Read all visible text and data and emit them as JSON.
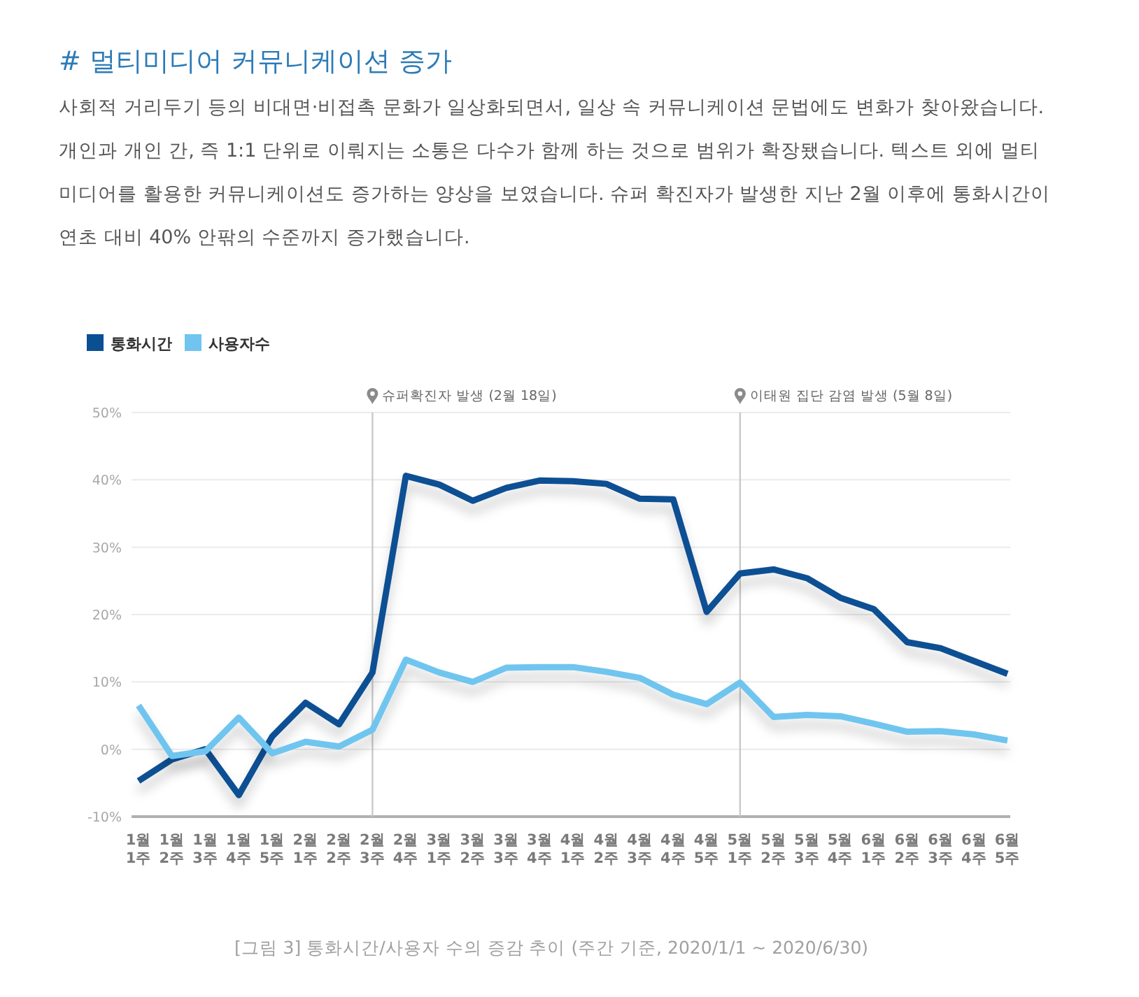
{
  "chart_data": {
    "type": "line",
    "title": "# 멀티미디어 커뮤니케이션 증가",
    "subtitle": "사회적 거리두기 등의 비대면·비접촉 문화가 일상화되면서, 일상 속 커뮤니케이션 문법에도 변화가 찾아왔습니다. 개인과 개인 간, 즉 1:1 단위로 이뤄지는 소통은 다수가 함께 하는 것으로 범위가 확장됐습니다. 텍스트 외에 멀티미디어를 활용한 커뮤니케이션도 증가하는 양상을 보였습니다. 슈퍼 확진자가 발생한 지난 2월 이후에 통화시간이 연초 대비 40% 안팎의 수준까지 증가했습니다.",
    "categories": [
      "1월 1주",
      "1월 2주",
      "1월 3주",
      "1월 4주",
      "1월 5주",
      "2월 1주",
      "2월 2주",
      "2월 3주",
      "2월 4주",
      "3월 1주",
      "3월 2주",
      "3월 3주",
      "3월 4주",
      "4월 1주",
      "4월 2주",
      "4월 3주",
      "4월 4주",
      "4월 5주",
      "5월 1주",
      "5월 2주",
      "5월 3주",
      "5월 4주",
      "6월 1주",
      "6월 2주",
      "6월 3주",
      "6월 4주",
      "6월 5주"
    ],
    "series": [
      {
        "name": "통화시간",
        "color": "#0b4f93",
        "values": [
          -4.7,
          -1.5,
          0,
          -6.8,
          1.9,
          6.9,
          3.7,
          11.4,
          40.6,
          39.3,
          36.9,
          38.8,
          39.9,
          39.8,
          39.4,
          37.2,
          37.1,
          20.4,
          26.1,
          26.7,
          25.4,
          22.5,
          20.8,
          15.9,
          15.0,
          13.1,
          11.2
        ]
      },
      {
        "name": "사용자수",
        "color": "#6fc5ef",
        "values": [
          6.5,
          -1.0,
          -0.3,
          4.7,
          -0.6,
          1.1,
          0.4,
          2.9,
          13.3,
          11.4,
          10.0,
          12.1,
          12.2,
          12.2,
          11.5,
          10.6,
          8.1,
          6.7,
          9.9,
          4.8,
          5.1,
          4.9,
          3.8,
          2.6,
          2.7,
          2.2,
          1.3
        ]
      }
    ],
    "ylim": [
      -10,
      50
    ],
    "yticks": [
      {
        "value": -10,
        "label": "-10%"
      },
      {
        "value": 0,
        "label": "0%"
      },
      {
        "value": 10,
        "label": "10%"
      },
      {
        "value": 20,
        "label": "20%"
      },
      {
        "value": 30,
        "label": "30%"
      },
      {
        "value": 40,
        "label": "40%"
      },
      {
        "value": 50,
        "label": "50%"
      }
    ],
    "grid": "y",
    "legend": "top left",
    "ref_lines": [
      {
        "axis": "x",
        "value": "2월 3주",
        "label": "슈퍼확진자 발생 (2월 18일)",
        "color": "#c9c9c9"
      },
      {
        "axis": "x",
        "value": "5월 1주",
        "label": "이태원 집단 감염 발생 (5월 8일)",
        "color": "#c9c9c9"
      }
    ],
    "annotations": [
      "[그림 3] 통화시간/사용자 수의 증감 추이 (주간 기준, 2020/1/1 ~ 2020/6/30)"
    ]
  }
}
